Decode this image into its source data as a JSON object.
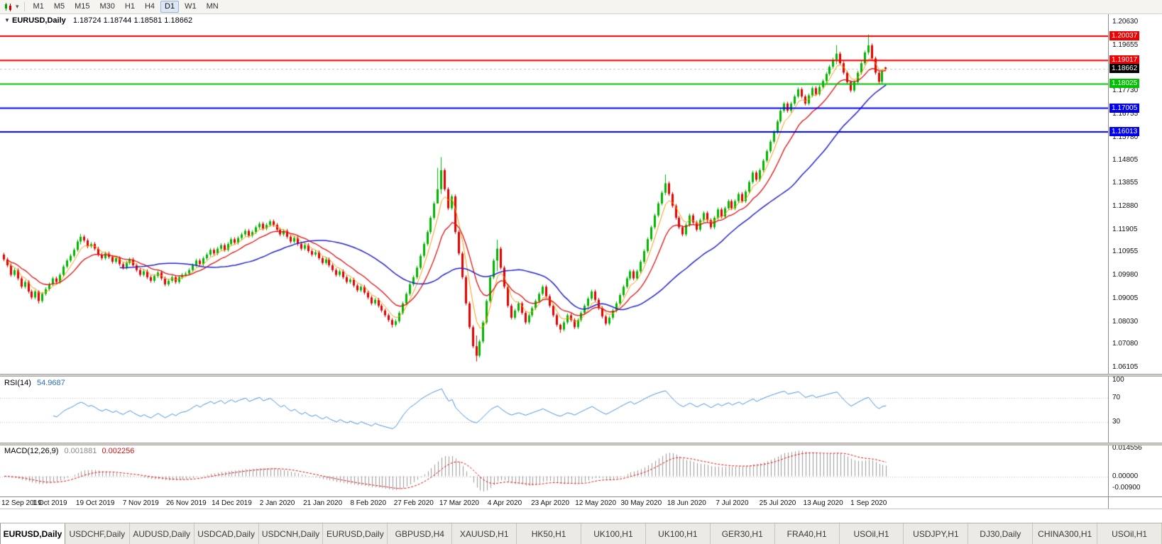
{
  "toolbar": {
    "timeframes": [
      "M1",
      "M5",
      "M15",
      "M30",
      "H1",
      "H4",
      "D1",
      "W1",
      "MN"
    ],
    "active_timeframe": "D1"
  },
  "chart": {
    "title_symbol": "EURUSD,Daily",
    "title_ohlc": "1.18724 1.18744 1.18581 1.18662",
    "price_scale_ticks": [
      "1.20630",
      "1.19655",
      "1.18680",
      "1.17730",
      "1.16755",
      "1.15780",
      "1.14805",
      "1.13855",
      "1.12880",
      "1.11905",
      "1.10955",
      "1.09980",
      "1.09005",
      "1.08030",
      "1.07080",
      "1.06105"
    ],
    "date_labels": [
      "12 Sep 2019",
      "1 Oct 2019",
      "19 Oct 2019",
      "7 Nov 2019",
      "26 Nov 2019",
      "14 Dec 2019",
      "2 Jan 2020",
      "21 Jan 2020",
      "8 Feb 2020",
      "27 Feb 2020",
      "17 Mar 2020",
      "4 Apr 2020",
      "23 Apr 2020",
      "12 May 2020",
      "30 May 2020",
      "18 Jun 2020",
      "7 Jul 2020",
      "25 Jul 2020",
      "13 Aug 2020",
      "1 Sep 2020"
    ]
  },
  "rsi": {
    "name": "RSI(14)",
    "value": "54.9687",
    "period": 14,
    "scale": [
      {
        "label": "100",
        "value": 100
      },
      {
        "label": "70",
        "value": 70
      },
      {
        "label": "30",
        "value": 30
      }
    ],
    "guide_levels": [
      70,
      30
    ]
  },
  "macd": {
    "name": "MACD(12,26,9)",
    "value_main": "0.001881",
    "value_signal": "0.002256",
    "scale": [
      {
        "label": "0.014556",
        "value": 0.014556
      },
      {
        "label": "0.00000",
        "value": 0
      },
      {
        "label": "-0.00900",
        "value": -0.009
      }
    ]
  },
  "tabs": [
    {
      "label": "EURUSD,Daily",
      "active": true
    },
    {
      "label": "USDCHF,Daily",
      "active": false
    },
    {
      "label": "AUDUSD,Daily",
      "active": false
    },
    {
      "label": "USDCAD,Daily",
      "active": false
    },
    {
      "label": "USDCNH,Daily",
      "active": false
    },
    {
      "label": "EURUSD,Daily",
      "active": false
    },
    {
      "label": "GBPUSD,H4",
      "active": false
    },
    {
      "label": "XAUUSD,H1",
      "active": false
    },
    {
      "label": "HK50,H1",
      "active": false
    },
    {
      "label": "UK100,H1",
      "active": false
    },
    {
      "label": "UK100,H1",
      "active": false
    },
    {
      "label": "GER30,H1",
      "active": false
    },
    {
      "label": "FRA40,H1",
      "active": false
    },
    {
      "label": "USOil,H1",
      "active": false
    },
    {
      "label": "USDJPY,H1",
      "active": false
    },
    {
      "label": "DJ30,Daily",
      "active": false
    },
    {
      "label": "CHINA300,H1",
      "active": false
    },
    {
      "label": "USOil,H1",
      "active": false
    }
  ],
  "colors": {
    "up": "#00b400",
    "down": "#e40000",
    "ma_fast": "#ff9800",
    "ma_mid": "#e01010",
    "ma_slow": "#2323cc",
    "rsi_line": "#4a90d9",
    "macd_hist": "#9a9a9a",
    "macd_signal": "#e01010",
    "bid_badge": "#000000",
    "guide_dotted": "#c0c0c0"
  },
  "chart_data": {
    "type": "candlestick",
    "symbol": "EURUSD",
    "timeframe": "Daily",
    "visible_range": {
      "price_top": 1.209,
      "price_bottom": 1.059
    },
    "first_open": 1.1085,
    "last_open": 1.18724,
    "closes": [
      1.1065,
      1.104,
      1.1,
      1.102,
      1.0985,
      1.095,
      1.097,
      1.093,
      1.0905,
      1.093,
      1.089,
      1.092,
      1.094,
      1.096,
      1.0985,
      1.097,
      1.1,
      1.1035,
      1.106,
      1.108,
      1.1105,
      1.114,
      1.116,
      1.1145,
      1.112,
      1.113,
      1.111,
      1.1085,
      1.107,
      1.109,
      1.1075,
      1.1055,
      1.107,
      1.1045,
      1.103,
      1.105,
      1.1065,
      1.104,
      1.102,
      1.1,
      1.1015,
      1.099,
      1.0975,
      1.0995,
      1.101,
      1.0985,
      1.096,
      1.0975,
      1.099,
      1.097,
      1.099,
      1.1,
      1.1005,
      1.102,
      1.104,
      1.106,
      1.1045,
      1.107,
      1.1085,
      1.1105,
      1.109,
      1.111,
      1.1125,
      1.1105,
      1.113,
      1.115,
      1.1135,
      1.1155,
      1.117,
      1.1185,
      1.1165,
      1.118,
      1.12,
      1.1215,
      1.1195,
      1.121,
      1.1225,
      1.121,
      1.119,
      1.117,
      1.1185,
      1.116,
      1.114,
      1.1155,
      1.113,
      1.111,
      1.1125,
      1.11,
      1.1085,
      1.1095,
      1.107,
      1.105,
      1.1065,
      1.104,
      1.102,
      1.1,
      1.1015,
      1.099,
      1.097,
      1.098,
      1.0955,
      1.0935,
      1.095,
      1.0925,
      1.0905,
      1.088,
      1.0895,
      1.087,
      1.085,
      1.083,
      1.081,
      1.079,
      1.0805,
      1.084,
      1.088,
      1.092,
      1.096,
      1.099,
      1.103,
      1.108,
      1.113,
      1.118,
      1.124,
      1.13,
      1.136,
      1.144,
      1.136,
      1.128,
      1.133,
      1.118,
      1.109,
      1.099,
      1.088,
      1.078,
      1.07,
      1.066,
      1.072,
      1.08,
      1.089,
      1.099,
      1.106,
      1.111,
      1.103,
      1.095,
      1.087,
      1.082,
      1.085,
      1.088,
      1.084,
      1.08,
      1.083,
      1.086,
      1.089,
      1.092,
      1.095,
      1.091,
      1.087,
      1.083,
      1.079,
      1.077,
      1.08,
      1.083,
      1.081,
      1.078,
      1.081,
      1.084,
      1.087,
      1.09,
      1.093,
      1.0895,
      1.086,
      1.0825,
      1.0795,
      1.082,
      1.085,
      1.088,
      1.0915,
      1.095,
      1.0985,
      1.1015,
      1.0985,
      1.1015,
      1.1055,
      1.11,
      1.115,
      1.12,
      1.125,
      1.13,
      1.1345,
      1.1385,
      1.134,
      1.129,
      1.124,
      1.12,
      1.117,
      1.121,
      1.125,
      1.122,
      1.119,
      1.123,
      1.126,
      1.123,
      1.12,
      1.124,
      1.1275,
      1.1245,
      1.128,
      1.131,
      1.128,
      1.131,
      1.134,
      1.131,
      1.135,
      1.139,
      1.143,
      1.14,
      1.144,
      1.148,
      1.152,
      1.156,
      1.16,
      1.1645,
      1.169,
      1.172,
      1.169,
      1.172,
      1.175,
      1.178,
      1.175,
      1.172,
      1.1755,
      1.1785,
      1.176,
      1.179,
      1.1815,
      1.1845,
      1.1875,
      1.1905,
      1.193,
      1.189,
      1.185,
      1.181,
      1.1775,
      1.181,
      1.185,
      1.189,
      1.1935,
      1.1965,
      1.191,
      1.185,
      1.1812,
      1.1855,
      1.18662
    ],
    "wick_overrides": {
      "10": [
        1.0935,
        1.0879
      ],
      "22": [
        1.1172,
        1.1128
      ],
      "111": [
        1.0818,
        1.0778
      ],
      "124": [
        1.145,
        1.1355
      ],
      "125": [
        1.1495,
        1.134
      ],
      "135": [
        1.0745,
        1.0636
      ],
      "141": [
        1.1148,
        1.1015
      ],
      "159": [
        1.0795,
        1.0756
      ],
      "189": [
        1.1422,
        1.1335
      ],
      "238": [
        1.1966,
        1.1885
      ],
      "247": [
        1.2011,
        1.1925
      ],
      "252": [
        1.18744,
        1.18581
      ]
    },
    "levels": [
      {
        "price": 1.20037,
        "label": "1.20037",
        "color": "#f00000"
      },
      {
        "price": 1.19017,
        "label": "1.19017",
        "color": "#f00000"
      },
      {
        "price": 1.18025,
        "label": "1.18025",
        "color": "#00c000"
      },
      {
        "price": 1.17005,
        "label": "1.17005",
        "color": "#0000f0"
      },
      {
        "price": 1.16013,
        "label": "1.16013",
        "color": "#0000f0"
      }
    ],
    "bid": {
      "price": 1.18662,
      "label": "1.18662"
    },
    "overlays": [
      {
        "name": "ma-fast",
        "method": "ema",
        "period": 5,
        "color": "#ff9800",
        "width": 1
      },
      {
        "name": "ma-mid",
        "method": "ema",
        "period": 13,
        "color": "#e01010",
        "width": 1.3
      },
      {
        "name": "ma-slow",
        "method": "sma",
        "period": 34,
        "color": "#2323cc",
        "width": 1.5
      }
    ],
    "indicators": [
      {
        "name": "RSI",
        "period": 14,
        "color": "#4a90d9"
      },
      {
        "name": "MACD",
        "fast": 12,
        "slow": 26,
        "signal": 9,
        "hist_color": "#9a9a9a",
        "signal_color": "#e01010"
      }
    ]
  }
}
